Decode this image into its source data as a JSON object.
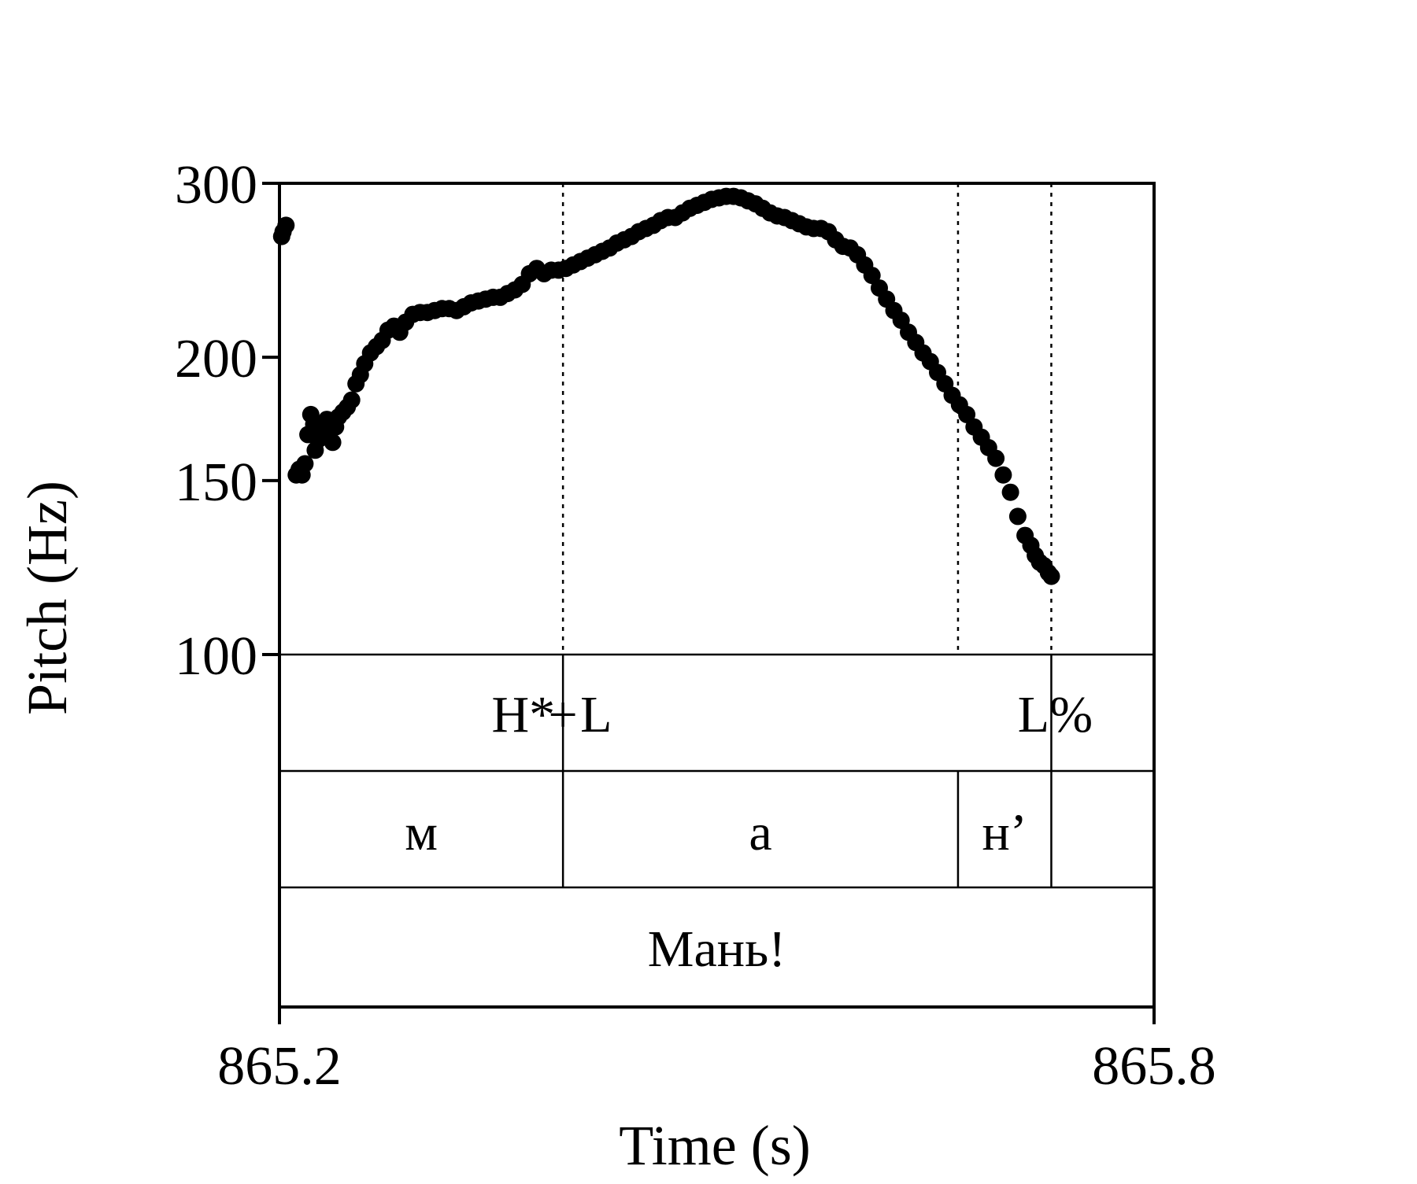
{
  "chart_data": {
    "type": "scatter",
    "title": "",
    "xlabel": "Time (s)",
    "ylabel": "Pitch (Hz)",
    "xlim": [
      865.2,
      865.8
    ],
    "ylim": [
      100,
      300
    ],
    "y_scale": "log",
    "x_ticks": [
      865.2,
      865.8
    ],
    "x_tick_labels": [
      "865.2",
      "865.8"
    ],
    "y_ticks": [
      100,
      150,
      200,
      300
    ],
    "y_tick_labels": [
      "100",
      "150",
      "200",
      "300"
    ],
    "grid": false,
    "legend": "none",
    "colors": {
      "points": "#000000",
      "axes": "#000000",
      "dotted": "#000000"
    },
    "boundaries": [
      865.3945,
      865.6655,
      865.7295
    ],
    "series": [
      {
        "points": [
          [
            865.2015,
            265
          ],
          [
            865.2025,
            268
          ],
          [
            865.2045,
            272
          ],
          [
            865.2115,
            152
          ],
          [
            865.2135,
            154
          ],
          [
            865.2155,
            152
          ],
          [
            865.2175,
            156
          ],
          [
            865.2195,
            167
          ],
          [
            865.2215,
            175
          ],
          [
            865.2235,
            171
          ],
          [
            865.2245,
            161
          ],
          [
            865.2265,
            165
          ],
          [
            865.2285,
            168
          ],
          [
            865.2305,
            170
          ],
          [
            865.2325,
            173
          ],
          [
            865.2345,
            168
          ],
          [
            865.2365,
            164
          ],
          [
            865.2385,
            170
          ],
          [
            865.2405,
            174
          ],
          [
            865.2435,
            176
          ],
          [
            865.2465,
            178
          ],
          [
            865.2495,
            181
          ],
          [
            865.2525,
            188
          ],
          [
            865.2555,
            192
          ],
          [
            865.2585,
            197
          ],
          [
            865.2625,
            202
          ],
          [
            865.2665,
            205
          ],
          [
            865.2705,
            208
          ],
          [
            865.2745,
            213
          ],
          [
            865.2785,
            215
          ],
          [
            865.2825,
            212
          ],
          [
            865.2865,
            217
          ],
          [
            865.2915,
            221
          ],
          [
            865.2965,
            222
          ],
          [
            865.3015,
            222
          ],
          [
            865.3065,
            223
          ],
          [
            865.3115,
            224
          ],
          [
            865.3165,
            224
          ],
          [
            865.3215,
            223
          ],
          [
            865.3265,
            225
          ],
          [
            865.3315,
            227
          ],
          [
            865.3365,
            228
          ],
          [
            865.3415,
            229
          ],
          [
            865.3465,
            230
          ],
          [
            865.3515,
            230
          ],
          [
            865.3565,
            232
          ],
          [
            865.3615,
            234
          ],
          [
            865.3665,
            237
          ],
          [
            865.3715,
            243
          ],
          [
            865.3765,
            246
          ],
          [
            865.3815,
            243
          ],
          [
            865.3865,
            245
          ],
          [
            865.3915,
            245
          ],
          [
            865.3965,
            246
          ],
          [
            865.4015,
            248
          ],
          [
            865.4065,
            250
          ],
          [
            865.4115,
            252
          ],
          [
            865.4165,
            254
          ],
          [
            865.4215,
            256
          ],
          [
            865.4265,
            258
          ],
          [
            865.4315,
            261
          ],
          [
            865.4365,
            263
          ],
          [
            865.4415,
            265
          ],
          [
            865.4465,
            268
          ],
          [
            865.4515,
            270
          ],
          [
            865.4565,
            272
          ],
          [
            865.4615,
            275
          ],
          [
            865.4665,
            277
          ],
          [
            865.4715,
            277
          ],
          [
            865.4765,
            280
          ],
          [
            865.4815,
            283
          ],
          [
            865.4865,
            285
          ],
          [
            865.4915,
            287
          ],
          [
            865.4965,
            289
          ],
          [
            865.5015,
            290
          ],
          [
            865.5065,
            291
          ],
          [
            865.5115,
            291
          ],
          [
            865.5165,
            290
          ],
          [
            865.5215,
            288
          ],
          [
            865.5265,
            286
          ],
          [
            865.5315,
            283
          ],
          [
            865.5365,
            280
          ],
          [
            865.5415,
            278
          ],
          [
            865.5465,
            277
          ],
          [
            865.5515,
            275
          ],
          [
            865.5565,
            273
          ],
          [
            865.5615,
            271
          ],
          [
            865.5665,
            270
          ],
          [
            865.5715,
            270
          ],
          [
            865.5765,
            268
          ],
          [
            865.5815,
            263
          ],
          [
            865.5865,
            259
          ],
          [
            865.5915,
            258
          ],
          [
            865.5965,
            254
          ],
          [
            865.6015,
            248
          ],
          [
            865.6065,
            242
          ],
          [
            865.6115,
            235
          ],
          [
            865.6165,
            229
          ],
          [
            865.6215,
            223
          ],
          [
            865.6265,
            218
          ],
          [
            865.6315,
            212
          ],
          [
            865.6365,
            207
          ],
          [
            865.6415,
            202
          ],
          [
            865.6465,
            198
          ],
          [
            865.6515,
            193
          ],
          [
            865.6565,
            188
          ],
          [
            865.6615,
            183
          ],
          [
            865.6665,
            179
          ],
          [
            865.6715,
            175
          ],
          [
            865.6765,
            170
          ],
          [
            865.6815,
            166
          ],
          [
            865.6865,
            162
          ],
          [
            865.6915,
            158
          ],
          [
            865.6965,
            152
          ],
          [
            865.7015,
            146
          ],
          [
            865.7065,
            138
          ],
          [
            865.7115,
            132
          ],
          [
            865.7155,
            129
          ],
          [
            865.7185,
            126
          ],
          [
            865.7215,
            124
          ],
          [
            865.7245,
            123
          ],
          [
            865.7275,
            121
          ],
          [
            865.7295,
            120
          ]
        ]
      }
    ]
  },
  "tiers": {
    "tones": [
      {
        "label": "H*",
        "t": 865.325
      },
      {
        "label": "+",
        "t": 865.3945
      },
      {
        "label": "L",
        "t": 865.4185
      },
      {
        "label": "L%",
        "t": 865.7295
      }
    ],
    "segments": [
      {
        "label": "м",
        "start": 865.2,
        "end": 865.3945
      },
      {
        "label": "а",
        "start": 865.3945,
        "end": 865.6655
      },
      {
        "label": "нʼ",
        "start": 865.6655,
        "end": 865.7295
      },
      {
        "label": "",
        "start": 865.7295,
        "end": 865.8
      }
    ],
    "word": {
      "label": "Мань!",
      "start": 865.2,
      "end": 865.8
    }
  }
}
